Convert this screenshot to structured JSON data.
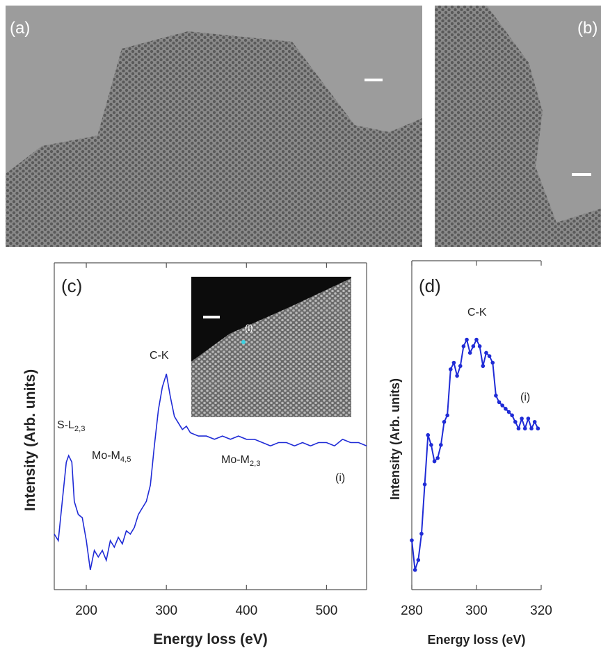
{
  "images": {
    "a_label": "(a)",
    "b_label": "(b)",
    "inset_label": "(i)"
  },
  "chart_data": [
    {
      "type": "line",
      "color": "#1f2bd6",
      "xlabel": "Energy loss (eV)",
      "ylabel": "Intensity (Arb. units)",
      "xlim": [
        160,
        550
      ],
      "xticks": [
        200,
        300,
        400,
        500
      ],
      "ylim": [
        0,
        100
      ],
      "x": [
        160,
        165,
        170,
        175,
        178,
        182,
        185,
        190,
        195,
        200,
        205,
        210,
        215,
        220,
        225,
        230,
        235,
        240,
        245,
        250,
        255,
        260,
        265,
        270,
        275,
        280,
        285,
        290,
        295,
        300,
        305,
        310,
        315,
        320,
        325,
        330,
        340,
        350,
        360,
        370,
        380,
        390,
        400,
        410,
        420,
        430,
        440,
        450,
        460,
        470,
        480,
        490,
        500,
        510,
        520,
        530,
        540,
        550
      ],
      "values": [
        17,
        15,
        27,
        39,
        41,
        39,
        27,
        23,
        22,
        15,
        6,
        12,
        10,
        12,
        9,
        15,
        13,
        16,
        14,
        18,
        17,
        19,
        23,
        25,
        27,
        32,
        44,
        55,
        62,
        66,
        59,
        53,
        51,
        49,
        50,
        48,
        47,
        47,
        46,
        47,
        46,
        47,
        46,
        46,
        45,
        44,
        45,
        45,
        44,
        45,
        44,
        45,
        45,
        44,
        46,
        45,
        45,
        44
      ],
      "annotations": [
        {
          "text": "(c)"
        },
        {
          "text": "S-L",
          "sub": "2,3"
        },
        {
          "text": "Mo-M",
          "sub": "4,5"
        },
        {
          "text": "C-K"
        },
        {
          "text": "Mo-M",
          "sub": "2,3"
        },
        {
          "text": "(i)"
        }
      ]
    },
    {
      "type": "line-markers",
      "color": "#1f2bd6",
      "xlabel": "Energy loss (eV)",
      "ylabel": "Intensity (Arb. units)",
      "xlim": [
        280,
        320
      ],
      "xticks": [
        280,
        300,
        320
      ],
      "ylim": [
        0,
        100
      ],
      "x": [
        280,
        281,
        282,
        283,
        284,
        285,
        286,
        287,
        288,
        289,
        290,
        291,
        292,
        293,
        294,
        295,
        296,
        297,
        298,
        299,
        300,
        301,
        302,
        303,
        304,
        305,
        306,
        307,
        308,
        309,
        310,
        311,
        312,
        313,
        314,
        315,
        316,
        317,
        318,
        319
      ],
      "values": [
        15,
        6,
        9,
        17,
        32,
        47,
        44,
        39,
        40,
        44,
        51,
        53,
        67,
        69,
        65,
        68,
        74,
        76,
        72,
        74,
        76,
        74,
        68,
        72,
        71,
        69,
        59,
        57,
        56,
        55,
        54,
        53,
        51,
        49,
        52,
        49,
        52,
        49,
        51,
        49
      ],
      "annotations": [
        {
          "text": "(d)"
        },
        {
          "text": "C-K"
        },
        {
          "text": "(i)"
        }
      ]
    }
  ]
}
